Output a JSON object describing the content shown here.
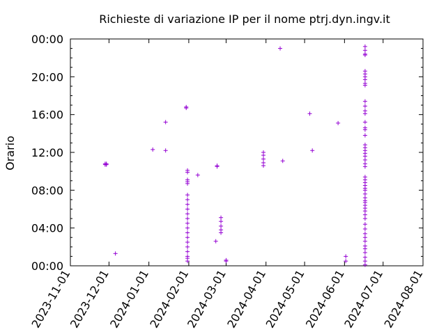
{
  "chart_data": {
    "type": "scatter",
    "title": "Richieste di variazione IP per il nome ptrj.dyn.ingv.it",
    "xlabel": "",
    "ylabel": "Orario",
    "marker": "plus",
    "color": "#9400d3",
    "grid": false,
    "xlim": [
      "2023-11-01",
      "2024-08-01"
    ],
    "ylim": [
      0,
      24
    ],
    "x_tick_labels": [
      "2023-11-01",
      "2023-12-01",
      "2024-01-01",
      "2024-02-01",
      "2024-03-01",
      "2024-04-01",
      "2024-05-01",
      "2024-06-01",
      "2024-07-01",
      "2024-08-01"
    ],
    "y_tick_labels": [
      "00:00",
      "04:00",
      "08:00",
      "12:00",
      "16:00",
      "20:00",
      "00:00"
    ],
    "y_tick_values": [
      0,
      4,
      8,
      12,
      16,
      20,
      24
    ],
    "points": [
      {
        "x": "2023-11-28",
        "y": [
          10.7,
          10.8
        ]
      },
      {
        "x": "2023-11-29",
        "y": [
          10.7,
          10.8
        ]
      },
      {
        "x": "2023-12-06",
        "y": [
          1.3
        ]
      },
      {
        "x": "2024-01-04",
        "y": [
          12.3
        ]
      },
      {
        "x": "2024-01-14",
        "y": [
          15.2,
          12.2
        ]
      },
      {
        "x": "2024-01-30",
        "y": [
          16.7,
          16.8
        ]
      },
      {
        "x": "2024-01-31",
        "y": [
          10.1,
          9.9,
          9.1,
          8.9,
          8.7,
          7.5,
          7.0,
          6.5,
          6.0,
          5.5,
          5.0,
          4.5,
          4.0,
          3.5,
          3.0,
          2.5,
          2.0,
          1.5,
          1.0,
          0.8,
          0.5
        ]
      },
      {
        "x": "2024-02-08",
        "y": [
          9.6
        ]
      },
      {
        "x": "2024-02-22",
        "y": [
          2.6
        ]
      },
      {
        "x": "2024-02-23",
        "y": [
          10.6,
          10.5
        ]
      },
      {
        "x": "2024-02-26",
        "y": [
          5.1,
          4.7,
          4.2,
          3.8,
          3.5
        ]
      },
      {
        "x": "2024-03-01",
        "y": [
          0.6,
          0.5
        ]
      },
      {
        "x": "2024-03-30",
        "y": [
          12.0,
          11.7,
          11.3,
          10.9,
          10.6
        ]
      },
      {
        "x": "2024-04-12",
        "y": [
          23.0
        ]
      },
      {
        "x": "2024-04-14",
        "y": [
          11.1
        ]
      },
      {
        "x": "2024-05-05",
        "y": [
          16.1
        ]
      },
      {
        "x": "2024-05-07",
        "y": [
          12.2
        ]
      },
      {
        "x": "2024-05-27",
        "y": [
          15.1
        ]
      },
      {
        "x": "2024-06-02",
        "y": [
          1.0,
          0.5
        ]
      },
      {
        "x": "2024-06-17",
        "y": [
          23.2,
          22.8,
          22.4,
          22.3,
          20.6,
          20.3,
          20.0,
          19.7,
          19.3,
          19.1,
          17.4,
          16.9,
          16.4,
          16.1,
          15.2,
          14.6,
          14.4,
          13.8,
          12.8,
          12.5,
          12.2,
          11.9,
          11.6,
          11.2,
          10.8,
          10.5,
          9.4,
          9.1,
          8.8,
          8.5,
          8.2,
          8.0,
          7.6,
          7.2,
          6.9,
          6.7,
          6.4,
          6.1,
          5.8,
          5.4,
          5.0,
          4.4,
          3.9,
          3.4,
          3.0,
          2.6,
          2.1,
          1.8,
          1.4,
          0.9,
          0.5,
          0.1
        ]
      }
    ]
  }
}
